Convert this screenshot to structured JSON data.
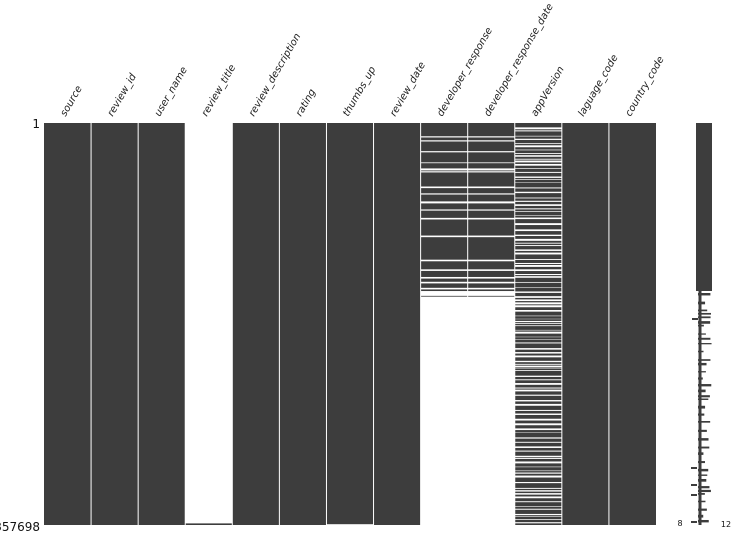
{
  "chart_data": {
    "type": "missingno-matrix",
    "columns": [
      {
        "name": "source",
        "present": [
          [
            0,
            1
          ]
        ]
      },
      {
        "name": "review_id",
        "present": [
          [
            0,
            1
          ]
        ]
      },
      {
        "name": "user_name",
        "present": [
          [
            0,
            1
          ]
        ]
      },
      {
        "name": "review_title",
        "present": [
          [
            0.996,
            1
          ]
        ]
      },
      {
        "name": "review_description",
        "present": [
          [
            0,
            1
          ]
        ]
      },
      {
        "name": "rating",
        "present": [
          [
            0,
            1
          ]
        ]
      },
      {
        "name": "thumbs_up",
        "present": [
          [
            0,
            0.998
          ]
        ]
      },
      {
        "name": "review_date",
        "present": [
          [
            0,
            1
          ]
        ]
      },
      {
        "name": "developer_response",
        "present": [
          [
            0,
            0.033
          ],
          [
            0.036,
            0.043
          ],
          [
            0.046,
            0.07
          ],
          [
            0.073,
            0.098
          ],
          [
            0.1,
            0.113
          ],
          [
            0.118,
            0.12
          ],
          [
            0.123,
            0.158
          ],
          [
            0.162,
            0.175
          ],
          [
            0.178,
            0.195
          ],
          [
            0.2,
            0.215
          ],
          [
            0.218,
            0.236
          ],
          [
            0.24,
            0.28
          ],
          [
            0.284,
            0.34
          ],
          [
            0.344,
            0.364
          ],
          [
            0.368,
            0.383
          ],
          [
            0.387,
            0.395
          ],
          [
            0.399,
            0.41
          ],
          [
            0.414,
            0.418
          ],
          [
            0.43,
            0.432
          ]
        ]
      },
      {
        "name": "developer_response_date",
        "present": [
          [
            0,
            0.033
          ],
          [
            0.036,
            0.043
          ],
          [
            0.046,
            0.07
          ],
          [
            0.073,
            0.098
          ],
          [
            0.1,
            0.113
          ],
          [
            0.118,
            0.12
          ],
          [
            0.123,
            0.158
          ],
          [
            0.162,
            0.175
          ],
          [
            0.178,
            0.195
          ],
          [
            0.2,
            0.215
          ],
          [
            0.218,
            0.236
          ],
          [
            0.24,
            0.28
          ],
          [
            0.284,
            0.34
          ],
          [
            0.344,
            0.364
          ],
          [
            0.368,
            0.383
          ],
          [
            0.387,
            0.395
          ],
          [
            0.399,
            0.41
          ],
          [
            0.414,
            0.418
          ],
          [
            0.43,
            0.432
          ]
        ]
      },
      {
        "name": "appVersion",
        "present": "striped"
      },
      {
        "name": "laguage_code",
        "present": [
          [
            0,
            1
          ]
        ]
      },
      {
        "name": "country_code",
        "present": [
          [
            0,
            1
          ]
        ]
      }
    ],
    "row_labels": {
      "top": "1",
      "bottom": "357698"
    },
    "sparkline": {
      "min_label": "8",
      "max_label": "12",
      "min": 8,
      "max": 12,
      "note_completeness": "rows with 12 of 13 columns complete dominate; occasional rows with fewer"
    },
    "colors": {
      "present": "#3d3d3d",
      "missing": "#ffffff",
      "separator": "#ffffff"
    }
  }
}
